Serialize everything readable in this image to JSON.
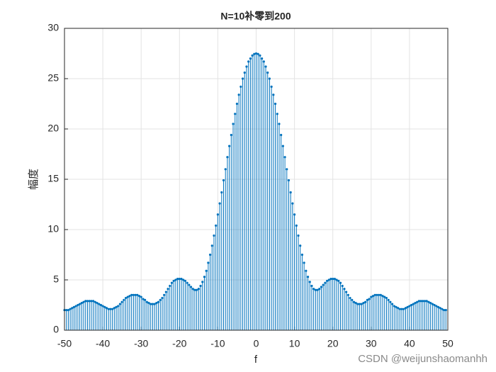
{
  "chart_data": {
    "type": "stem",
    "title": "N=10补零到200",
    "xlabel": "f",
    "ylabel": "幅度",
    "watermark": "CSDN @weijunshaomanhh",
    "x": [
      -50,
      -49.5,
      -49,
      -48.5,
      -48,
      -47.5,
      -47,
      -46.5,
      -46,
      -45.5,
      -45,
      -44.5,
      -44,
      -43.5,
      -43,
      -42.5,
      -42,
      -41.5,
      -41,
      -40.5,
      -40,
      -39.5,
      -39,
      -38.5,
      -38,
      -37.5,
      -37,
      -36.5,
      -36,
      -35.5,
      -35,
      -34.5,
      -34,
      -33.5,
      -33,
      -32.5,
      -32,
      -31.5,
      -31,
      -30.5,
      -30,
      -29.5,
      -29,
      -28.5,
      -28,
      -27.5,
      -27,
      -26.5,
      -26,
      -25.5,
      -25,
      -24.5,
      -24,
      -23.5,
      -23,
      -22.5,
      -22,
      -21.5,
      -21,
      -20.5,
      -20,
      -19.5,
      -19,
      -18.5,
      -18,
      -17.5,
      -17,
      -16.5,
      -16,
      -15.5,
      -15,
      -14.5,
      -14,
      -13.5,
      -13,
      -12.5,
      -12,
      -11.5,
      -11,
      -10.5,
      -10,
      -9.5,
      -9,
      -8.5,
      -8,
      -7.5,
      -7,
      -6.5,
      -6,
      -5.5,
      -5,
      -4.5,
      -4,
      -3.5,
      -3,
      -2.5,
      -2,
      -1.5,
      -1,
      -0.5,
      0,
      0.5,
      1,
      1.5,
      2,
      2.5,
      3,
      3.5,
      4,
      4.5,
      5,
      5.5,
      6,
      6.5,
      7,
      7.5,
      8,
      8.5,
      9,
      9.5,
      10,
      10.5,
      11,
      11.5,
      12,
      12.5,
      13,
      13.5,
      14,
      14.5,
      15,
      15.5,
      16,
      16.5,
      17,
      17.5,
      18,
      18.5,
      19,
      19.5,
      20,
      20.5,
      21,
      21.5,
      22,
      22.5,
      23,
      23.5,
      24,
      24.5,
      25,
      25.5,
      26,
      26.5,
      27,
      27.5,
      28,
      28.5,
      29,
      29.5,
      30,
      30.5,
      31,
      31.5,
      32,
      32.5,
      33,
      33.5,
      34,
      34.5,
      35,
      35.5,
      36,
      36.5,
      37,
      37.5,
      38,
      38.5,
      39,
      39.5,
      40,
      40.5,
      41,
      41.5,
      42,
      42.5,
      43,
      43.5,
      44,
      44.5,
      45,
      45.5,
      46,
      46.5,
      47,
      47.5,
      48,
      48.5,
      49,
      49.5
    ],
    "series": [
      {
        "color": "#0072bd",
        "values": [
          2.0,
          2.0,
          2.0,
          2.1,
          2.2,
          2.3,
          2.4,
          2.5,
          2.6,
          2.7,
          2.8,
          2.9,
          2.9,
          2.9,
          2.9,
          2.9,
          2.8,
          2.7,
          2.6,
          2.5,
          2.4,
          2.3,
          2.2,
          2.1,
          2.1,
          2.1,
          2.2,
          2.3,
          2.4,
          2.6,
          2.8,
          3.0,
          3.2,
          3.3,
          3.4,
          3.5,
          3.5,
          3.5,
          3.5,
          3.4,
          3.3,
          3.1,
          3.0,
          2.8,
          2.7,
          2.6,
          2.6,
          2.6,
          2.7,
          2.8,
          3.0,
          3.2,
          3.5,
          3.8,
          4.1,
          4.4,
          4.7,
          4.9,
          5.0,
          5.1,
          5.1,
          5.1,
          5.0,
          4.9,
          4.7,
          4.5,
          4.3,
          4.1,
          4.0,
          4.0,
          4.1,
          4.4,
          4.8,
          5.3,
          5.9,
          6.7,
          7.5,
          8.4,
          9.4,
          10.4,
          11.5,
          12.6,
          13.7,
          14.9,
          16.0,
          17.2,
          18.3,
          19.4,
          20.5,
          21.5,
          22.5,
          23.4,
          24.2,
          25.0,
          25.6,
          26.2,
          26.7,
          27.0,
          27.3,
          27.45,
          27.5,
          27.45,
          27.3,
          27.0,
          26.7,
          26.2,
          25.6,
          25.0,
          24.2,
          23.4,
          22.5,
          21.5,
          20.5,
          19.4,
          18.3,
          17.2,
          16.0,
          14.9,
          13.7,
          12.6,
          11.5,
          10.4,
          9.4,
          8.4,
          7.5,
          6.7,
          5.9,
          5.3,
          4.8,
          4.4,
          4.1,
          4.0,
          4.0,
          4.1,
          4.3,
          4.5,
          4.7,
          4.9,
          5.0,
          5.1,
          5.1,
          5.1,
          5.0,
          4.9,
          4.7,
          4.4,
          4.1,
          3.8,
          3.5,
          3.2,
          3.0,
          2.8,
          2.7,
          2.6,
          2.6,
          2.6,
          2.7,
          2.8,
          3.0,
          3.1,
          3.3,
          3.4,
          3.5,
          3.5,
          3.5,
          3.5,
          3.4,
          3.3,
          3.2,
          3.0,
          2.8,
          2.6,
          2.4,
          2.3,
          2.2,
          2.1,
          2.1,
          2.1,
          2.2,
          2.3,
          2.4,
          2.5,
          2.6,
          2.7,
          2.8,
          2.9,
          2.9,
          2.9,
          2.9,
          2.9,
          2.8,
          2.7,
          2.6,
          2.5,
          2.4,
          2.3,
          2.2,
          2.1,
          2.0,
          2.0
        ]
      }
    ],
    "xlim": [
      -50,
      50
    ],
    "xticks": [
      -50,
      -40,
      -30,
      -20,
      -10,
      0,
      10,
      20,
      30,
      40,
      50
    ],
    "ylim": [
      0,
      30
    ],
    "yticks": [
      0,
      5,
      10,
      15,
      20,
      25,
      30
    ],
    "grid": true
  }
}
